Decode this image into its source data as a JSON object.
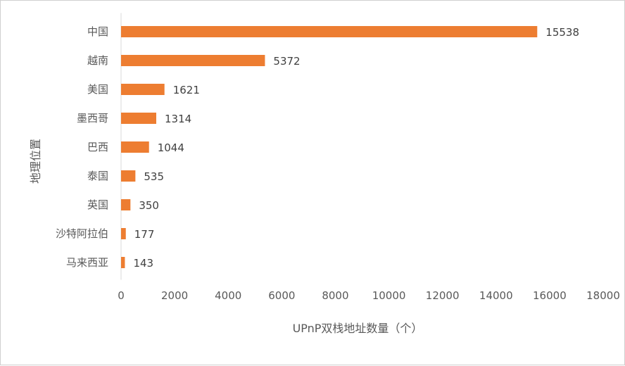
{
  "chart_data": {
    "type": "bar",
    "orientation": "horizontal",
    "categories": [
      "中国",
      "越南",
      "美国",
      "墨西哥",
      "巴西",
      "泰国",
      "英国",
      "沙特阿拉伯",
      "马来西亚"
    ],
    "values": [
      15538,
      5372,
      1621,
      1314,
      1044,
      535,
      350,
      177,
      143
    ],
    "data_labels": [
      "15538",
      "5372",
      "1621",
      "1314",
      "1044",
      "535",
      "350",
      "177",
      "143"
    ],
    "xlabel": "UPnP双栈地址数量（个）",
    "ylabel": "地理位置",
    "xlim": [
      0,
      18000
    ],
    "xticks": [
      "0",
      "2000",
      "4000",
      "6000",
      "8000",
      "10000",
      "12000",
      "14000",
      "16000",
      "18000"
    ],
    "grid": false,
    "legend": "none",
    "bar_color": "#ED7D31",
    "axis_color": "#D9D9D9"
  }
}
